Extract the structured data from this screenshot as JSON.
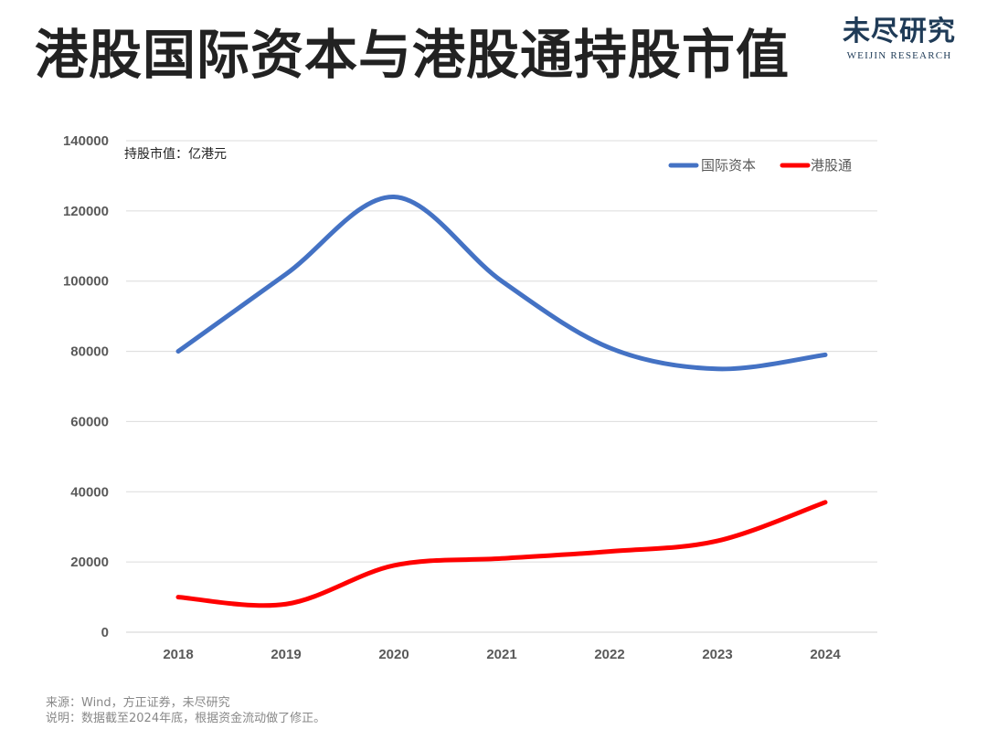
{
  "title": "港股国际资本与港股通持股市值",
  "logo": {
    "cn": "未尽研究",
    "en": "WEIJIN RESEARCH"
  },
  "unit_label": "持股市值：亿港元",
  "footnotes": {
    "source": "来源：Wind，方正证券，未尽研究",
    "note": "说明：数据截至2024年底，根据资金流动做了修正。"
  },
  "chart_data": {
    "type": "line",
    "categories": [
      "2018",
      "2019",
      "2020",
      "2021",
      "2022",
      "2023",
      "2024"
    ],
    "series": [
      {
        "name": "国际资本",
        "color": "#4472c4",
        "values": [
          80000,
          102000,
          124000,
          100000,
          81000,
          75000,
          79000
        ]
      },
      {
        "name": "港股通",
        "color": "#ff0000",
        "values": [
          10000,
          8000,
          19000,
          21000,
          23000,
          26000,
          37000
        ]
      }
    ],
    "ylim": [
      0,
      140000
    ],
    "yticks": [
      0,
      20000,
      40000,
      60000,
      80000,
      100000,
      120000,
      140000
    ],
    "ylabel": "持股市值：亿港元",
    "xlabel": "",
    "grid": true,
    "legend": "top-right"
  }
}
